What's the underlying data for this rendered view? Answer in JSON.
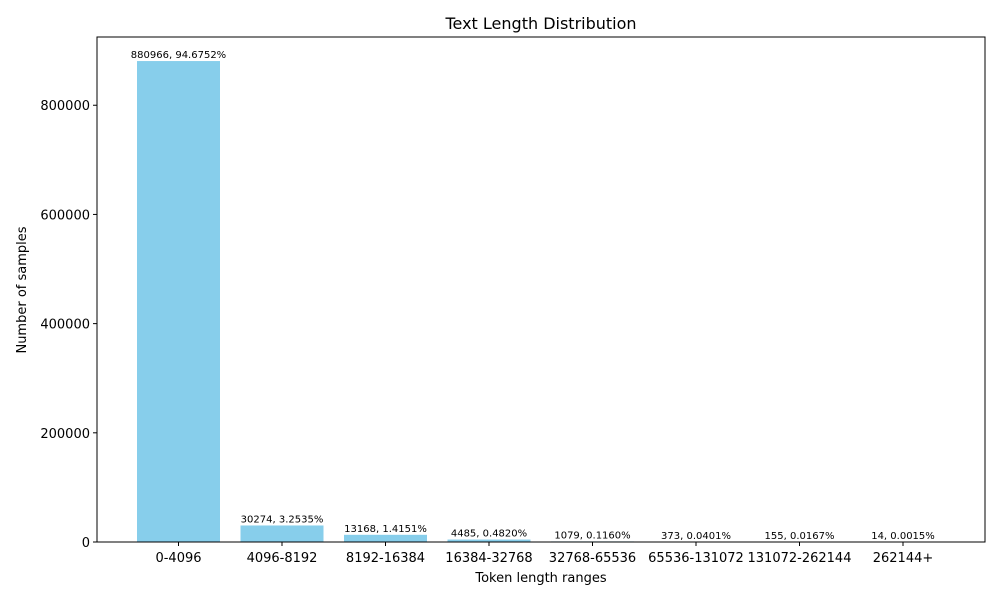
{
  "chart_data": {
    "type": "bar",
    "title": "Text Length Distribution",
    "xlabel": "Token length ranges",
    "ylabel": "Number of samples",
    "categories": [
      "0-4096",
      "4096-8192",
      "8192-16384",
      "16384-32768",
      "32768-65536",
      "65536-131072",
      "131072-262144",
      "262144+"
    ],
    "values": [
      880966,
      30274,
      13168,
      4485,
      1079,
      373,
      155,
      14
    ],
    "value_labels": [
      "880966, 94.6752%",
      "30274, 3.2535%",
      "13168, 1.4151%",
      "4485, 0.4820%",
      "1079, 0.1160%",
      "373, 0.0401%",
      "155, 0.0167%",
      "14, 0.0015%"
    ],
    "yticks": [
      0,
      200000,
      400000,
      600000,
      800000
    ],
    "ylim": [
      0,
      925000
    ],
    "bar_color": "#87ceeb",
    "grid": false,
    "legend": false
  }
}
